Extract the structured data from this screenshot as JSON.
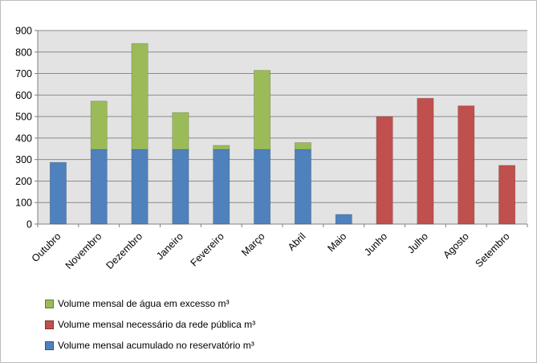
{
  "chart_data": {
    "type": "bar",
    "stacked": true,
    "categories": [
      "Outubro",
      "Novembro",
      "Dezembro",
      "Janeiro",
      "Fevereiro",
      "Março",
      "Abril",
      "Maio",
      "Junho",
      "Julho",
      "Agosto",
      "Setembro"
    ],
    "series": [
      {
        "name": "Volume mensal acumulado no reservatório m³",
        "color": "#4f81bd",
        "values": [
          287,
          347,
          347,
          347,
          347,
          347,
          347,
          45,
          0,
          0,
          0,
          0
        ]
      },
      {
        "name": "Volume mensal de água em excesso m³",
        "color": "#9bbb59",
        "values": [
          0,
          225,
          493,
          172,
          19,
          368,
          32,
          0,
          0,
          0,
          0,
          0
        ]
      },
      {
        "name": "Volume mensal necessário da rede pública m³",
        "color": "#c0504d",
        "values": [
          0,
          0,
          0,
          0,
          0,
          0,
          0,
          0,
          500,
          585,
          550,
          273
        ]
      }
    ],
    "legend_order": [
      1,
      2,
      0
    ],
    "ylim": [
      0,
      900
    ],
    "yticks": [
      0,
      100,
      200,
      300,
      400,
      500,
      600,
      700,
      800,
      900
    ],
    "grid": true,
    "legend_position": "bottom",
    "plot_background": "#e3e3e3",
    "gridline_color": "#8c8c8c"
  }
}
